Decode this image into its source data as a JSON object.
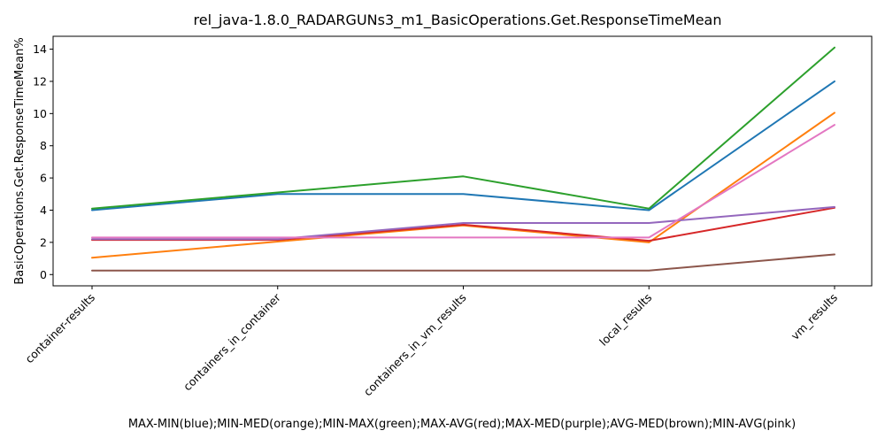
{
  "chart_data": {
    "type": "line",
    "title": "rel_java-1.8.0_RADARGUNs3_m1_BasicOperations.Get.ResponseTimeMean",
    "xlabel": "MAX-MIN(blue);MIN-MED(orange);MIN-MAX(green);MAX-AVG(red);MAX-MED(purple);AVG-MED(brown);MIN-AVG(pink)",
    "ylabel": "BasicOperations.Get.ResponseTimeMean%",
    "categories": [
      "container-results",
      "containers_in_container",
      "containers_in_vm_results",
      "local_results",
      "vm_results"
    ],
    "ylim": [
      -0.7,
      14.8
    ],
    "yticks": [
      0,
      2,
      4,
      6,
      8,
      10,
      12,
      14
    ],
    "grid": false,
    "legend": "none",
    "series": [
      {
        "color": "#1f77b4",
        "values": [
          4.0,
          5.0,
          5.0,
          4.0,
          12.0
        ]
      },
      {
        "color": "#ff7f0e",
        "values": [
          1.05,
          2.05,
          3.05,
          2.0,
          10.05
        ]
      },
      {
        "color": "#2ca02c",
        "values": [
          4.1,
          5.1,
          6.1,
          4.1,
          14.1
        ]
      },
      {
        "color": "#d62728",
        "values": [
          2.15,
          2.15,
          3.1,
          2.1,
          4.15
        ]
      },
      {
        "color": "#9467bd",
        "values": [
          2.2,
          2.2,
          3.2,
          3.2,
          4.2
        ]
      },
      {
        "color": "#8c564b",
        "values": [
          0.25,
          0.25,
          0.25,
          0.25,
          1.25
        ]
      },
      {
        "color": "#e377c2",
        "values": [
          2.3,
          2.3,
          2.3,
          2.3,
          9.3
        ]
      }
    ]
  }
}
